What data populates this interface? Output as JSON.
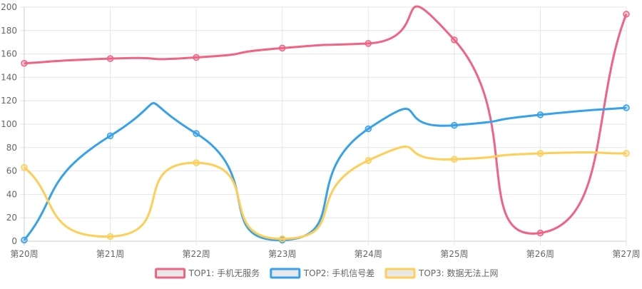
{
  "chart_data": {
    "type": "line",
    "title": "",
    "xlabel": "",
    "ylabel": "",
    "categories": [
      "第20周",
      "第21周",
      "第22周",
      "第23周",
      "第24周",
      "第25周",
      "第26周",
      "第27周"
    ],
    "ylim": [
      0,
      200
    ],
    "yticks": [
      0,
      20,
      40,
      60,
      80,
      100,
      120,
      140,
      160,
      180,
      200
    ],
    "grid": true,
    "legend_position": "bottom",
    "series": [
      {
        "name": "TOP1: 手机无服务",
        "color": "#f06384",
        "fill": "#e8e8e8",
        "values": [
          152,
          156,
          157,
          165,
          169,
          172,
          7,
          194
        ]
      },
      {
        "name": "TOP2: 手机信号差",
        "color": "#36a2eb",
        "fill": "#e8e8e8",
        "values": [
          1,
          90,
          92,
          1,
          96,
          99,
          108,
          114
        ]
      },
      {
        "name": "TOP3: 数据无法上网",
        "color": "#ffce56",
        "fill": "#e8e8e8",
        "values": [
          63,
          4,
          67,
          2,
          69,
          70,
          75,
          75
        ]
      }
    ]
  }
}
